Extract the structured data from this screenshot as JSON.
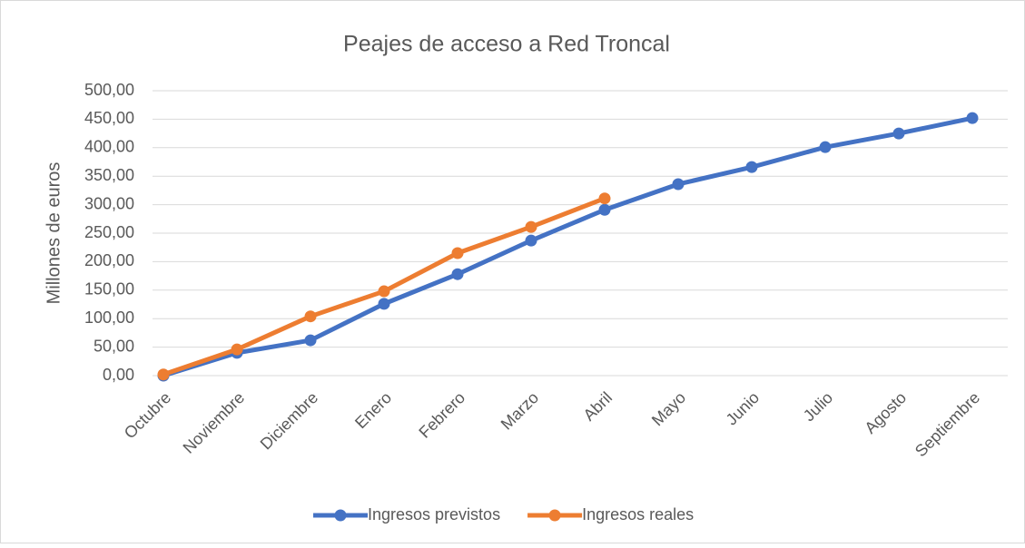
{
  "chart_data": {
    "type": "line",
    "title": "Peajes de acceso a Red Troncal",
    "y_label": "Millones de euros",
    "categories": [
      "Octubre",
      "Noviembre",
      "Diciembre",
      "Enero",
      "Febrero",
      "Marzo",
      "Abril",
      "Mayo",
      "Junio",
      "Julio",
      "Agosto",
      "Septiembre"
    ],
    "series": [
      {
        "name": "Ingresos previstos",
        "color": "#4472c4",
        "values": [
          0,
          40,
          62,
          126,
          178,
          237,
          291,
          336,
          366,
          401,
          425,
          452
        ]
      },
      {
        "name": "Ingresos reales",
        "color": "#ed7d31",
        "values": [
          2,
          46,
          104,
          148,
          215,
          261,
          311,
          null,
          null,
          null,
          null,
          null
        ]
      }
    ],
    "ylim": [
      0,
      500
    ],
    "yticks": [
      {
        "value": 0,
        "label": "0,00"
      },
      {
        "value": 50,
        "label": "50,00"
      },
      {
        "value": 100,
        "label": "100,00"
      },
      {
        "value": 150,
        "label": "150,00"
      },
      {
        "value": 200,
        "label": "200,00"
      },
      {
        "value": 250,
        "label": "250,00"
      },
      {
        "value": 300,
        "label": "300,00"
      },
      {
        "value": 350,
        "label": "350,00"
      },
      {
        "value": 400,
        "label": "400,00"
      },
      {
        "value": 450,
        "label": "450,00"
      },
      {
        "value": 500,
        "label": "500,00"
      }
    ],
    "grid": true,
    "legend": "bottom"
  }
}
